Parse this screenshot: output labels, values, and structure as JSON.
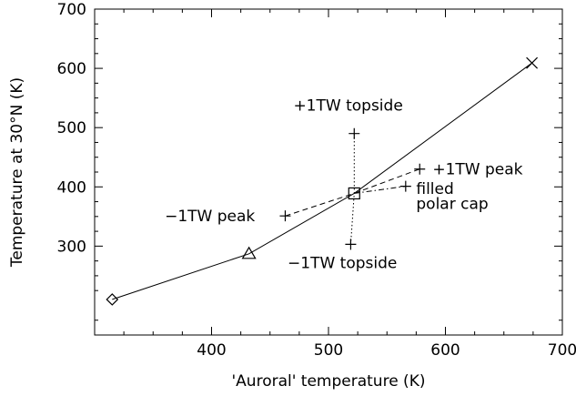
{
  "chart_data": {
    "type": "line",
    "xlabel": "'Auroral' temperature (K)",
    "ylabel": "Temperature at 30°N (K)",
    "xlim": [
      300,
      700
    ],
    "ylim": [
      150,
      700
    ],
    "x_ticks": [
      400,
      500,
      600,
      700
    ],
    "x_tick_labels": [
      "400",
      "500",
      "600",
      "700"
    ],
    "y_ticks": [
      300,
      400,
      500,
      600,
      700
    ],
    "y_tick_labels": [
      "300",
      "400",
      "500",
      "600",
      "700"
    ],
    "grid": false,
    "series": [
      {
        "style": "solid",
        "x": [
          315,
          432,
          522,
          674
        ],
        "y": [
          210,
          287,
          389,
          609
        ],
        "markers": [
          "diamond",
          "triangle",
          "square",
          "x"
        ]
      },
      {
        "style": "dashed",
        "x": [
          463,
          522,
          578
        ],
        "y": [
          351,
          389,
          430
        ],
        "markers": [
          "plus",
          "square",
          "plus"
        ]
      },
      {
        "style": "dashdot",
        "x": [
          522,
          566
        ],
        "y": [
          389,
          401
        ],
        "markers": [
          "square",
          "plus"
        ]
      },
      {
        "style": "dotted",
        "x": [
          519,
          522,
          522
        ],
        "y": [
          303,
          389,
          490
        ],
        "markers": [
          "plus",
          "square",
          "plus"
        ]
      }
    ],
    "annotations": [
      {
        "text": "+1TW topside",
        "x": 470,
        "y": 538
      },
      {
        "text": "+1TW peak",
        "x": 589,
        "y": 430
      },
      {
        "text": "filled",
        "x": 575,
        "y": 397
      },
      {
        "text": "polar cap",
        "x": 575,
        "y": 372
      },
      {
        "text": "−1TW peak",
        "x": 360,
        "y": 351
      },
      {
        "text": "−1TW topside",
        "x": 465,
        "y": 272
      }
    ]
  }
}
